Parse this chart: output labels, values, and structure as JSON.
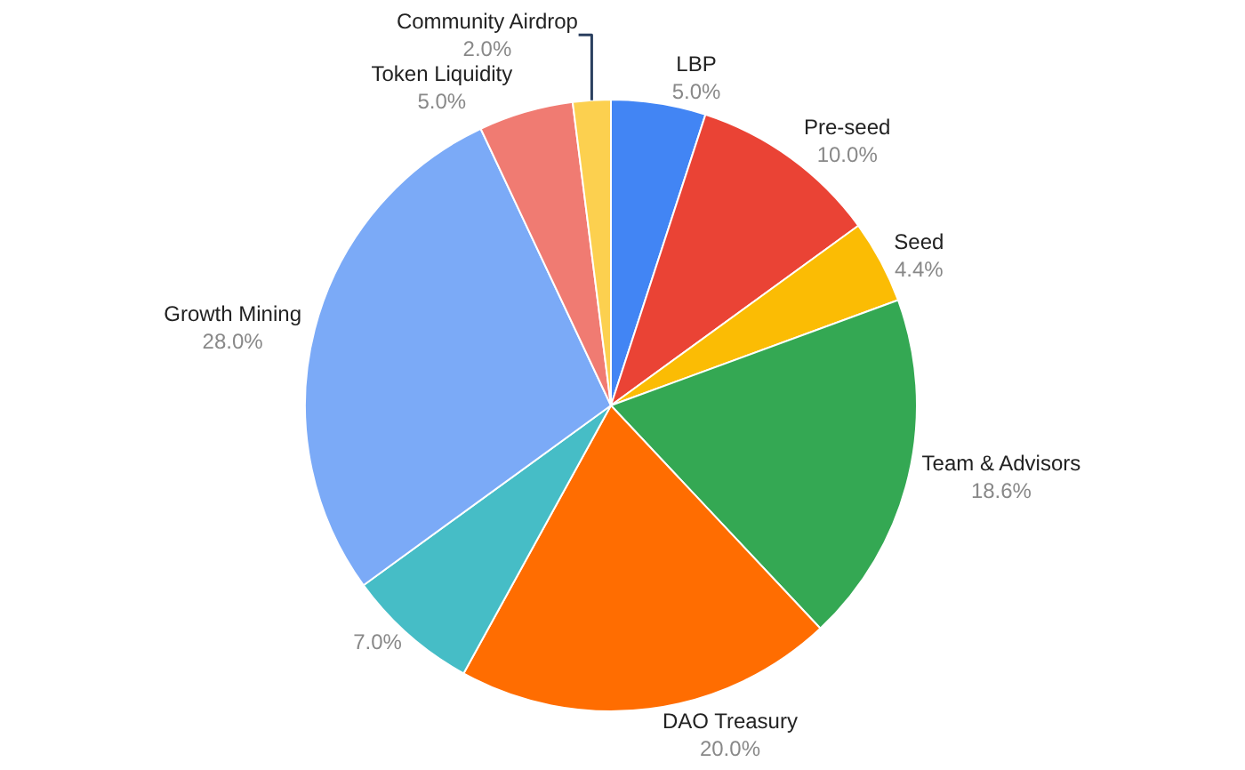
{
  "chart_data": {
    "type": "pie",
    "categories": [
      "LBP",
      "Pre-seed",
      "Seed",
      "Team & Advisors",
      "DAO Treasury",
      null,
      "Growth Mining",
      "Token Liquidity",
      "Community Airdrop"
    ],
    "values": [
      5.0,
      10.0,
      4.4,
      18.6,
      20.0,
      7.0,
      28.0,
      5.0,
      2.0
    ],
    "value_labels": [
      "5.0%",
      "10.0%",
      "4.4%",
      "18.6%",
      "20.0%",
      "7.0%",
      "28.0%",
      "5.0%",
      "2.0%"
    ],
    "colors": [
      "#4285f4",
      "#ea4335",
      "#fbbc04",
      "#34a853",
      "#ff6d01",
      "#46bdc6",
      "#7baaf7",
      "#f07b72",
      "#fcd04f"
    ],
    "legend": false
  }
}
